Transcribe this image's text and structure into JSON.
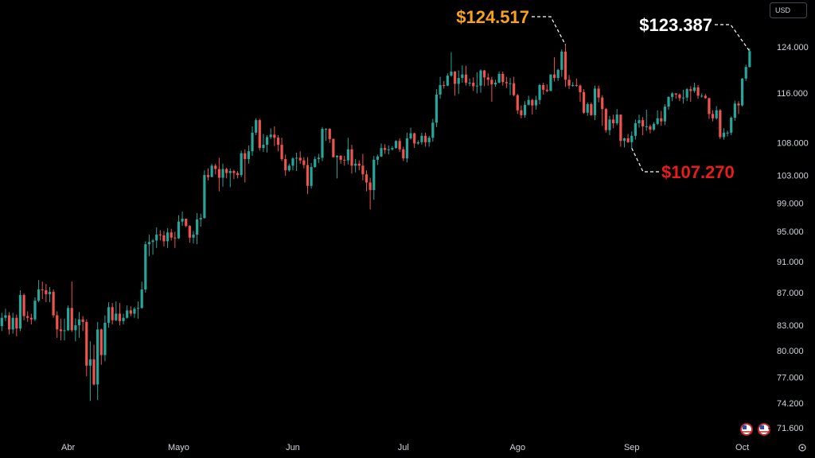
{
  "chart_data": {
    "type": "candlestick",
    "currency": "USD",
    "up_color": "#26a69a",
    "down_color": "#ef5350",
    "log_scale": true,
    "xlim": [
      -0.5,
      208
    ],
    "xticks": [
      {
        "value": 18,
        "label": "Abr"
      },
      {
        "value": 48,
        "label": "Mayo"
      },
      {
        "value": 79,
        "label": "Jun"
      },
      {
        "value": 109,
        "label": "Jul"
      },
      {
        "value": 140,
        "label": "Ago"
      },
      {
        "value": 171,
        "label": "Sep"
      },
      {
        "value": 201,
        "label": "Oct"
      }
    ],
    "ylim": [
      70780,
      132830
    ],
    "yticks": [
      {
        "value": 71600,
        "label": "71.600"
      },
      {
        "value": 74200,
        "label": "74.200"
      },
      {
        "value": 77000,
        "label": "77.000"
      },
      {
        "value": 80000,
        "label": "80.000"
      },
      {
        "value": 83000,
        "label": "83.000"
      },
      {
        "value": 87000,
        "label": "87.000"
      },
      {
        "value": 91000,
        "label": "91.000"
      },
      {
        "value": 95000,
        "label": "95.000"
      },
      {
        "value": 99000,
        "label": "99.000"
      },
      {
        "value": 103000,
        "label": "103.000"
      },
      {
        "value": 108000,
        "label": "108.000"
      },
      {
        "value": 116000,
        "label": "116.000"
      },
      {
        "value": 124000,
        "label": "124.000"
      }
    ],
    "open": [
      83000,
      84000,
      84300,
      82600,
      84000,
      82700,
      86800,
      84200,
      84000,
      83800,
      86100,
      87500,
      87400,
      86900,
      87200,
      84300,
      82600,
      82400,
      82500,
      85200,
      82500,
      83100,
      83800,
      83500,
      78400,
      79100,
      76300,
      82600,
      79600,
      83400,
      85300,
      83700,
      84500,
      83600,
      84000,
      84900,
      84500,
      85100,
      85200,
      87500,
      93400,
      93700,
      93900,
      94700,
      94600,
      93800,
      95000,
      94300,
      94200,
      96500,
      96900,
      95900,
      94300,
      94700,
      96800,
      97000,
      103200,
      102900,
      104600,
      104100,
      102800,
      104100,
      103500,
      103800,
      103500,
      103200,
      106500,
      105600,
      106800,
      109700,
      111700,
      107300,
      107800,
      109000,
      109400,
      108900,
      107800,
      105600,
      103900,
      104600,
      105700,
      105800,
      105400,
      104700,
      101600,
      104400,
      105600,
      105800,
      110300,
      110300,
      108700,
      105900,
      106100,
      105500,
      105400,
      107100,
      104600,
      104900,
      104600,
      103300,
      102100,
      101000,
      105500,
      106000,
      107300,
      107000,
      107100,
      107300,
      108400,
      107100,
      105700,
      108800,
      109600,
      108000,
      108200,
      109200,
      108200,
      108900,
      111300,
      115900,
      117500,
      117400,
      119100,
      119800,
      117700,
      118700,
      119300,
      117900,
      117900,
      117300,
      117400,
      120000,
      118800,
      118400,
      117600,
      117900,
      119400,
      118000,
      117800,
      117800,
      115800,
      113300,
      112500,
      114200,
      115000,
      114100,
      115000,
      117500,
      116700,
      116500,
      119300,
      118700,
      120100,
      123300,
      118400,
      117400,
      117500,
      117400,
      116300,
      112900,
      114300,
      112500,
      116900,
      115400,
      113500,
      110100,
      111800,
      111200,
      112600,
      108400,
      108800,
      108200,
      109200,
      111200,
      111700,
      110700,
      110700,
      110200,
      111100,
      112000,
      111500,
      113900,
      115500,
      116100,
      115900,
      115300,
      115400,
      116800,
      116500,
      117100,
      115700,
      115700,
      115300,
      112700,
      112000,
      113300,
      109000,
      109700,
      109700,
      112100,
      114400,
      114100,
      118600,
      120600
    ],
    "high": [
      84600,
      85100,
      84700,
      84600,
      84400,
      87400,
      87000,
      84800,
      84500,
      86500,
      88700,
      88500,
      88200,
      87800,
      87500,
      84800,
      83900,
      83900,
      85500,
      88500,
      83900,
      84700,
      84200,
      83800,
      81200,
      80800,
      83500,
      82700,
      84300,
      85900,
      85800,
      86000,
      85800,
      84500,
      85500,
      85400,
      85300,
      86000,
      88500,
      93800,
      94700,
      94100,
      95700,
      95300,
      95200,
      95600,
      95500,
      95100,
      97400,
      97900,
      96900,
      96000,
      95200,
      97700,
      97600,
      103900,
      104200,
      104900,
      104900,
      105800,
      104900,
      104300,
      104200,
      104000,
      103800,
      106900,
      107100,
      107700,
      110700,
      112000,
      111900,
      109500,
      109300,
      110400,
      110700,
      109300,
      108900,
      106300,
      104900,
      105900,
      106600,
      106800,
      105900,
      105900,
      105000,
      106000,
      106400,
      110600,
      110400,
      110400,
      108800,
      106200,
      106200,
      106100,
      108900,
      107800,
      105600,
      105400,
      106400,
      103900,
      102800,
      106100,
      106300,
      108000,
      107900,
      107700,
      107600,
      108500,
      108800,
      107500,
      109700,
      110500,
      109700,
      108500,
      109700,
      109700,
      109200,
      111900,
      116800,
      118900,
      118200,
      119500,
      123200,
      119900,
      120000,
      120900,
      120800,
      118600,
      118800,
      119700,
      120200,
      120100,
      119500,
      118900,
      118400,
      119800,
      119800,
      118900,
      118700,
      118900,
      116000,
      114100,
      114800,
      115700,
      115200,
      115700,
      117700,
      117900,
      117600,
      119300,
      122300,
      120300,
      123700,
      124517,
      119200,
      118000,
      118600,
      117600,
      116800,
      114600,
      114600,
      117400,
      117400,
      115800,
      113700,
      112400,
      112600,
      113500,
      112600,
      108900,
      109500,
      109900,
      111800,
      112600,
      112200,
      113400,
      111000,
      111400,
      113300,
      113200,
      114300,
      115600,
      116300,
      116100,
      116100,
      116700,
      117000,
      117300,
      117900,
      117500,
      116100,
      116000,
      115400,
      113300,
      114000,
      113500,
      110400,
      110000,
      112300,
      114900,
      114800,
      118700,
      121000,
      123900
    ],
    "low": [
      82400,
      83600,
      82000,
      82100,
      81800,
      82400,
      83700,
      83500,
      83200,
      83600,
      85900,
      86300,
      85900,
      85900,
      84000,
      81600,
      81300,
      81300,
      82400,
      82300,
      81200,
      81600,
      82400,
      77200,
      74500,
      76200,
      74600,
      78500,
      78900,
      82800,
      83200,
      83600,
      83100,
      83200,
      83900,
      84200,
      84000,
      83900,
      85100,
      87100,
      91800,
      92000,
      92900,
      93900,
      93100,
      92900,
      93900,
      92900,
      94100,
      95900,
      95700,
      93600,
      93500,
      93400,
      95800,
      96900,
      102400,
      102900,
      103300,
      100800,
      101500,
      102700,
      101400,
      102600,
      102700,
      102900,
      102100,
      104900,
      106100,
      109300,
      106900,
      106700,
      106600,
      108700,
      107600,
      106800,
      105300,
      103100,
      103700,
      103900,
      103800,
      104900,
      104200,
      100400,
      101200,
      104300,
      105000,
      105300,
      108400,
      108100,
      105800,
      102700,
      104900,
      104600,
      104800,
      103400,
      103600,
      103900,
      102400,
      100800,
      98200,
      99600,
      104700,
      105900,
      106400,
      106300,
      106900,
      107200,
      106700,
      105300,
      105100,
      108600,
      107300,
      107800,
      107800,
      107500,
      107500,
      108300,
      110600,
      115200,
      116900,
      117300,
      118900,
      115700,
      116000,
      117900,
      117400,
      117300,
      116500,
      116100,
      116200,
      117300,
      117400,
      114700,
      117200,
      117800,
      117400,
      117000,
      115800,
      115600,
      112700,
      112000,
      112100,
      114100,
      112600,
      113400,
      114300,
      115900,
      116300,
      116500,
      118100,
      118200,
      118900,
      117200,
      116800,
      117200,
      117200,
      114700,
      112700,
      112400,
      112400,
      111700,
      114600,
      110800,
      109700,
      109300,
      110400,
      110900,
      107500,
      107400,
      108100,
      107270,
      108600,
      110500,
      109300,
      110000,
      109600,
      110000,
      110900,
      110800,
      110900,
      113400,
      114800,
      115200,
      114800,
      114400,
      114800,
      114700,
      116200,
      115200,
      115400,
      115200,
      111900,
      111500,
      111800,
      108700,
      108600,
      109100,
      109300,
      111600,
      112700,
      113900,
      118200,
      120500
    ],
    "close": [
      84000,
      84300,
      82600,
      84000,
      82700,
      86800,
      84200,
      84000,
      83800,
      86100,
      87500,
      87400,
      86900,
      87200,
      84300,
      82600,
      82400,
      82500,
      85200,
      82500,
      83100,
      83800,
      83500,
      78400,
      79100,
      76300,
      82600,
      79600,
      83400,
      85300,
      83700,
      84500,
      83600,
      84000,
      84900,
      84500,
      85100,
      85200,
      87500,
      93400,
      93700,
      93900,
      94700,
      94600,
      93800,
      95000,
      94300,
      94200,
      96500,
      96900,
      95900,
      94300,
      94700,
      96800,
      97000,
      103200,
      102900,
      104600,
      104100,
      102800,
      104100,
      103500,
      103800,
      103500,
      103200,
      106500,
      105600,
      106800,
      109700,
      111700,
      107300,
      107800,
      109000,
      109400,
      108900,
      107800,
      105600,
      103900,
      104600,
      105700,
      105800,
      105400,
      104700,
      101600,
      104400,
      105600,
      105800,
      110300,
      110300,
      108700,
      105900,
      106100,
      105500,
      105400,
      107100,
      104600,
      104900,
      104600,
      103300,
      102100,
      101000,
      105500,
      106000,
      107300,
      107000,
      107100,
      107300,
      108400,
      107100,
      105700,
      108800,
      109600,
      108000,
      108200,
      109200,
      108200,
      108900,
      111300,
      115900,
      117500,
      117400,
      119100,
      119800,
      117700,
      118700,
      119300,
      117900,
      117900,
      117300,
      117400,
      120000,
      118800,
      118400,
      117600,
      117900,
      119400,
      118000,
      117800,
      117800,
      115800,
      113300,
      112500,
      114200,
      115000,
      114100,
      115000,
      117500,
      116700,
      116500,
      119300,
      118700,
      120100,
      123300,
      118400,
      117400,
      117500,
      117400,
      116300,
      112900,
      114300,
      112500,
      116900,
      115400,
      113500,
      110100,
      111800,
      111200,
      112600,
      108400,
      108800,
      108200,
      109200,
      111200,
      111700,
      110700,
      110700,
      110200,
      111100,
      112000,
      111500,
      113900,
      115500,
      116100,
      115900,
      115300,
      115400,
      116800,
      116500,
      117100,
      115700,
      115700,
      115300,
      112700,
      112000,
      113300,
      109000,
      109700,
      109700,
      112100,
      114400,
      114100,
      118600,
      120600,
      123387
    ],
    "annotations": [
      {
        "label": "$124.517",
        "value": 124517,
        "index": 153,
        "color": "#f7a21b"
      },
      {
        "label": "$123.387",
        "value": 123387,
        "index": 203,
        "color": "#ffffff"
      },
      {
        "label": "$107.270",
        "value": 107270,
        "index": 171,
        "color": "#e81c1c"
      }
    ]
  }
}
